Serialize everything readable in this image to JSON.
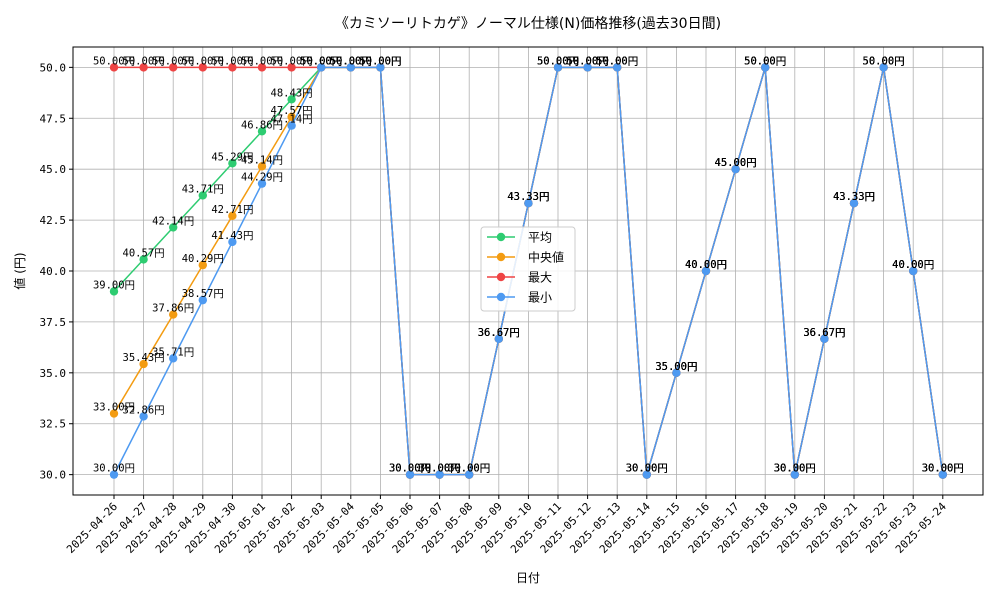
{
  "chart_data": {
    "type": "line",
    "title": "《カミソーリトカゲ》ノーマル仕様(N)価格推移(過去30日間)",
    "xlabel": "日付",
    "ylabel": "値 (円)",
    "ylim": [
      29.0,
      51.0
    ],
    "yticks": [
      30.0,
      32.5,
      35.0,
      37.5,
      40.0,
      42.5,
      45.0,
      47.5,
      50.0
    ],
    "ytick_labels": [
      "30.0",
      "32.5",
      "35.0",
      "37.5",
      "40.0",
      "42.5",
      "45.0",
      "47.5",
      "50.0"
    ],
    "grid": true,
    "legend_position": "center",
    "value_suffix": "円",
    "categories": [
      "2025-04-26",
      "2025-04-27",
      "2025-04-28",
      "2025-04-29",
      "2025-04-30",
      "2025-05-01",
      "2025-05-02",
      "2025-05-03",
      "2025-05-04",
      "2025-05-05",
      "2025-05-06",
      "2025-05-07",
      "2025-05-08",
      "2025-05-09",
      "2025-05-10",
      "2025-05-11",
      "2025-05-12",
      "2025-05-13",
      "2025-05-14",
      "2025-05-15",
      "2025-05-16",
      "2025-05-17",
      "2025-05-18",
      "2025-05-19",
      "2025-05-20",
      "2025-05-21",
      "2025-05-22",
      "2025-05-23",
      "2025-05-24"
    ],
    "series": [
      {
        "name": "平均",
        "color": "#2ecc71",
        "values": [
          39.0,
          40.57,
          42.14,
          43.71,
          45.29,
          46.86,
          48.43,
          50.0,
          50.0,
          50.0,
          30.0,
          30.0,
          30.0,
          36.67,
          43.33,
          50.0,
          50.0,
          50.0,
          30.0,
          35.0,
          40.0,
          45.0,
          50.0,
          30.0,
          36.67,
          43.33,
          50.0,
          40.0,
          30.0
        ]
      },
      {
        "name": "中央値",
        "color": "#f39c12",
        "values": [
          33.0,
          35.43,
          37.86,
          40.29,
          42.71,
          45.14,
          47.57,
          50.0,
          50.0,
          50.0,
          30.0,
          30.0,
          30.0,
          36.67,
          43.33,
          50.0,
          50.0,
          50.0,
          30.0,
          35.0,
          40.0,
          45.0,
          50.0,
          30.0,
          36.67,
          43.33,
          50.0,
          40.0,
          30.0
        ]
      },
      {
        "name": "最大",
        "color": "#ef4444",
        "values": [
          50.0,
          50.0,
          50.0,
          50.0,
          50.0,
          50.0,
          50.0,
          50.0,
          50.0,
          50.0,
          30.0,
          30.0,
          30.0,
          36.67,
          43.33,
          50.0,
          50.0,
          50.0,
          30.0,
          35.0,
          40.0,
          45.0,
          50.0,
          30.0,
          36.67,
          43.33,
          50.0,
          40.0,
          30.0
        ]
      },
      {
        "name": "最小",
        "color": "#4e9af1",
        "values": [
          30.0,
          32.86,
          35.71,
          38.57,
          41.43,
          44.29,
          47.14,
          50.0,
          50.0,
          50.0,
          30.0,
          30.0,
          30.0,
          36.67,
          43.33,
          50.0,
          50.0,
          50.0,
          30.0,
          35.0,
          40.0,
          45.0,
          50.0,
          30.0,
          36.67,
          43.33,
          50.0,
          40.0,
          30.0
        ]
      }
    ]
  }
}
